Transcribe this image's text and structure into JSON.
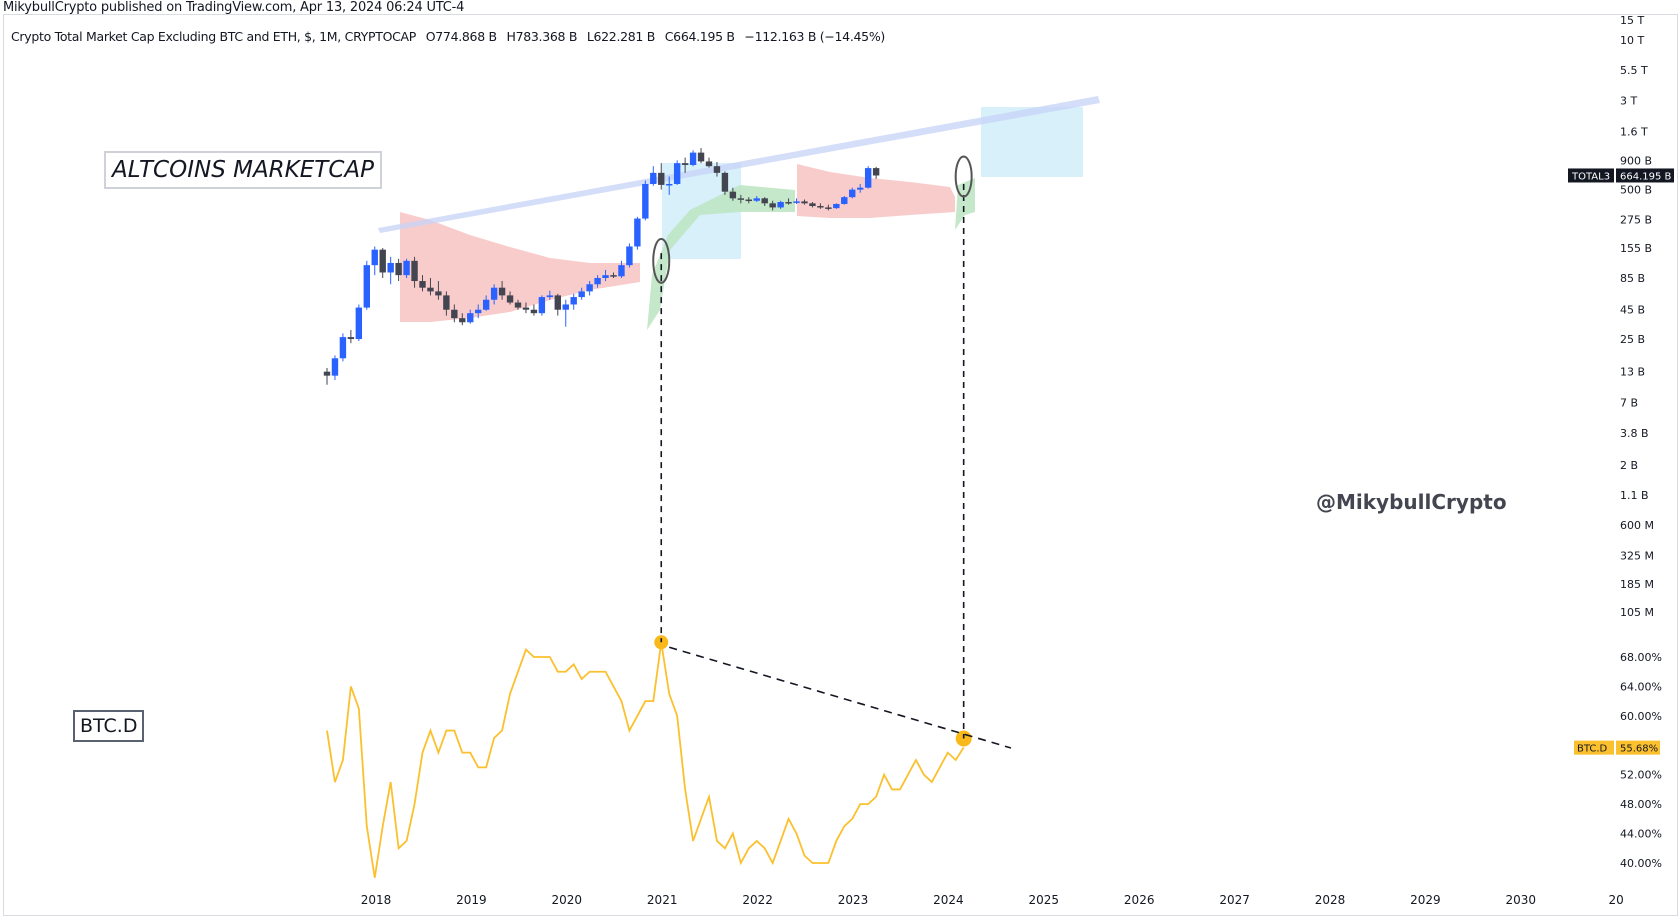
{
  "header": {
    "published": "MikybullCrypto published on TradingView.com, Apr 13, 2024 06:24 UTC-4"
  },
  "legend": {
    "title": "Crypto Total Market Cap Excluding BTC and ETH, $, 1M, CRYPTOCAP",
    "open": "O774.868 B",
    "high": "H783.368 B",
    "low": "L622.281 B",
    "close": "C664.195 B",
    "change": "−112.163 B (−14.45%)"
  },
  "annotations": {
    "altcoins_label": "ALTCOINS MARKETCAP",
    "btcd_label": "BTC.D",
    "watermark": "@MikybullCrypto"
  },
  "colors": {
    "up_candle": "#2962ff",
    "down_candle": "#434651",
    "btcd_line": "#fbc02d",
    "pink_zone": "#f8c6c6",
    "green_zone": "#bfe5c4",
    "blue_zone": "#d3eefa",
    "trend_channel": "#c7d3f7"
  },
  "chart_data": [
    {
      "type": "candlestick",
      "name": "TOTAL3",
      "scale": "log",
      "y_tick_labels": [
        "15 T",
        "10 T",
        "5.5 T",
        "3 T",
        "1.6 T",
        "900 B",
        "500 B",
        "275 B",
        "155 B",
        "85 B",
        "45 B",
        "25 B",
        "13 B",
        "7 B",
        "3.8 B",
        "2 B",
        "1.1 B",
        "600 M",
        "325 M",
        "185 M",
        "105 M"
      ],
      "last_value_label": "664.195 B",
      "series_label": "TOTAL3",
      "x_tick_labels": [
        "2018",
        "2019",
        "2020",
        "2021",
        "2022",
        "2023",
        "2024",
        "2025",
        "2026",
        "2027",
        "2028",
        "2029",
        "2030",
        "20"
      ],
      "candles_ohlc_billions": [
        [
          13,
          14,
          10,
          12
        ],
        [
          12,
          18,
          11,
          17
        ],
        [
          17,
          28,
          16,
          26
        ],
        [
          26,
          30,
          23,
          25
        ],
        [
          25,
          50,
          24,
          47
        ],
        [
          47,
          120,
          45,
          110
        ],
        [
          110,
          160,
          90,
          150
        ],
        [
          150,
          155,
          85,
          95
        ],
        [
          95,
          130,
          75,
          115
        ],
        [
          115,
          125,
          80,
          90
        ],
        [
          90,
          125,
          85,
          120
        ],
        [
          120,
          130,
          70,
          80
        ],
        [
          80,
          90,
          65,
          70
        ],
        [
          70,
          85,
          60,
          65
        ],
        [
          65,
          80,
          55,
          60
        ],
        [
          60,
          65,
          40,
          45
        ],
        [
          45,
          50,
          35,
          38
        ],
        [
          38,
          42,
          33,
          35
        ],
        [
          35,
          45,
          34,
          42
        ],
        [
          42,
          50,
          38,
          45
        ],
        [
          45,
          60,
          44,
          55
        ],
        [
          55,
          75,
          50,
          70
        ],
        [
          70,
          80,
          55,
          60
        ],
        [
          60,
          65,
          50,
          52
        ],
        [
          52,
          55,
          45,
          47
        ],
        [
          47,
          52,
          42,
          45
        ],
        [
          45,
          50,
          40,
          42
        ],
        [
          42,
          60,
          40,
          58
        ],
        [
          58,
          66,
          55,
          60
        ],
        [
          60,
          62,
          40,
          45
        ],
        [
          45,
          55,
          32,
          50
        ],
        [
          50,
          62,
          45,
          58
        ],
        [
          58,
          70,
          55,
          65
        ],
        [
          65,
          80,
          60,
          75
        ],
        [
          75,
          90,
          70,
          85
        ],
        [
          85,
          100,
          80,
          90
        ],
        [
          90,
          95,
          85,
          88
        ],
        [
          88,
          120,
          85,
          110
        ],
        [
          110,
          170,
          105,
          160
        ],
        [
          160,
          290,
          150,
          280
        ],
        [
          280,
          600,
          270,
          560
        ],
        [
          560,
          800,
          540,
          700
        ],
        [
          700,
          850,
          500,
          550
        ],
        [
          550,
          650,
          450,
          560
        ],
        [
          560,
          900,
          550,
          850
        ],
        [
          850,
          950,
          700,
          820
        ],
        [
          820,
          1100,
          800,
          1050
        ],
        [
          1050,
          1150,
          850,
          880
        ],
        [
          880,
          950,
          780,
          800
        ],
        [
          800,
          870,
          650,
          700
        ],
        [
          700,
          720,
          450,
          480
        ],
        [
          480,
          520,
          400,
          420
        ],
        [
          420,
          450,
          380,
          410
        ],
        [
          410,
          430,
          380,
          400
        ],
        [
          400,
          440,
          390,
          420
        ],
        [
          420,
          430,
          360,
          380
        ],
        [
          380,
          400,
          330,
          350
        ],
        [
          350,
          400,
          340,
          390
        ],
        [
          390,
          420,
          370,
          385
        ],
        [
          385,
          420,
          375,
          395
        ],
        [
          395,
          410,
          370,
          380
        ],
        [
          380,
          390,
          350,
          360
        ],
        [
          360,
          380,
          340,
          350
        ],
        [
          350,
          370,
          330,
          345
        ],
        [
          345,
          380,
          340,
          375
        ],
        [
          375,
          440,
          370,
          430
        ],
        [
          430,
          520,
          420,
          500
        ],
        [
          500,
          560,
          470,
          520
        ],
        [
          520,
          800,
          510,
          770
        ],
        [
          770,
          790,
          620,
          664
        ]
      ]
    },
    {
      "type": "line",
      "name": "BTC.D",
      "y_tick_labels": [
        "68.00%",
        "64.00%",
        "60.00%",
        "52.00%",
        "48.00%",
        "44.00%",
        "40.00%"
      ],
      "last_value_label": "55.68%",
      "series_label": "BTC.D",
      "y_unit": "percent",
      "x_unit": "month index (0 = Jul 2017)",
      "points": [
        [
          0,
          58
        ],
        [
          1,
          51
        ],
        [
          2,
          54
        ],
        [
          3,
          64
        ],
        [
          4,
          61
        ],
        [
          5,
          45
        ],
        [
          6,
          38
        ],
        [
          7,
          45
        ],
        [
          8,
          51
        ],
        [
          9,
          42
        ],
        [
          10,
          43
        ],
        [
          11,
          48
        ],
        [
          12,
          55
        ],
        [
          13,
          58
        ],
        [
          14,
          55
        ],
        [
          15,
          58
        ],
        [
          16,
          58
        ],
        [
          17,
          55
        ],
        [
          18,
          55
        ],
        [
          19,
          53
        ],
        [
          20,
          53
        ],
        [
          21,
          57
        ],
        [
          22,
          58
        ],
        [
          23,
          63
        ],
        [
          24,
          66
        ],
        [
          25,
          69
        ],
        [
          26,
          68
        ],
        [
          27,
          68
        ],
        [
          28,
          68
        ],
        [
          29,
          66
        ],
        [
          30,
          66
        ],
        [
          31,
          67
        ],
        [
          32,
          65
        ],
        [
          33,
          66
        ],
        [
          34,
          66
        ],
        [
          35,
          66
        ],
        [
          36,
          64
        ],
        [
          37,
          62
        ],
        [
          38,
          58
        ],
        [
          39,
          60
        ],
        [
          40,
          62
        ],
        [
          41,
          62
        ],
        [
          42,
          70
        ],
        [
          43,
          63
        ],
        [
          44,
          60
        ],
        [
          45,
          50
        ],
        [
          46,
          43
        ],
        [
          47,
          46
        ],
        [
          48,
          49
        ],
        [
          49,
          43
        ],
        [
          50,
          42
        ],
        [
          51,
          44
        ],
        [
          52,
          40
        ],
        [
          53,
          42
        ],
        [
          54,
          43
        ],
        [
          55,
          42
        ],
        [
          56,
          40
        ],
        [
          57,
          43
        ],
        [
          58,
          46
        ],
        [
          59,
          44
        ],
        [
          60,
          41
        ],
        [
          61,
          40
        ],
        [
          62,
          40
        ],
        [
          63,
          40
        ],
        [
          64,
          43
        ],
        [
          65,
          45
        ],
        [
          66,
          46
        ],
        [
          67,
          48
        ],
        [
          68,
          48
        ],
        [
          69,
          49
        ],
        [
          70,
          52
        ],
        [
          71,
          50
        ],
        [
          72,
          50
        ],
        [
          73,
          52
        ],
        [
          74,
          54
        ],
        [
          75,
          52
        ],
        [
          76,
          51
        ],
        [
          77,
          53
        ],
        [
          78,
          55
        ],
        [
          79,
          54
        ],
        [
          80,
          55.7
        ]
      ]
    }
  ]
}
